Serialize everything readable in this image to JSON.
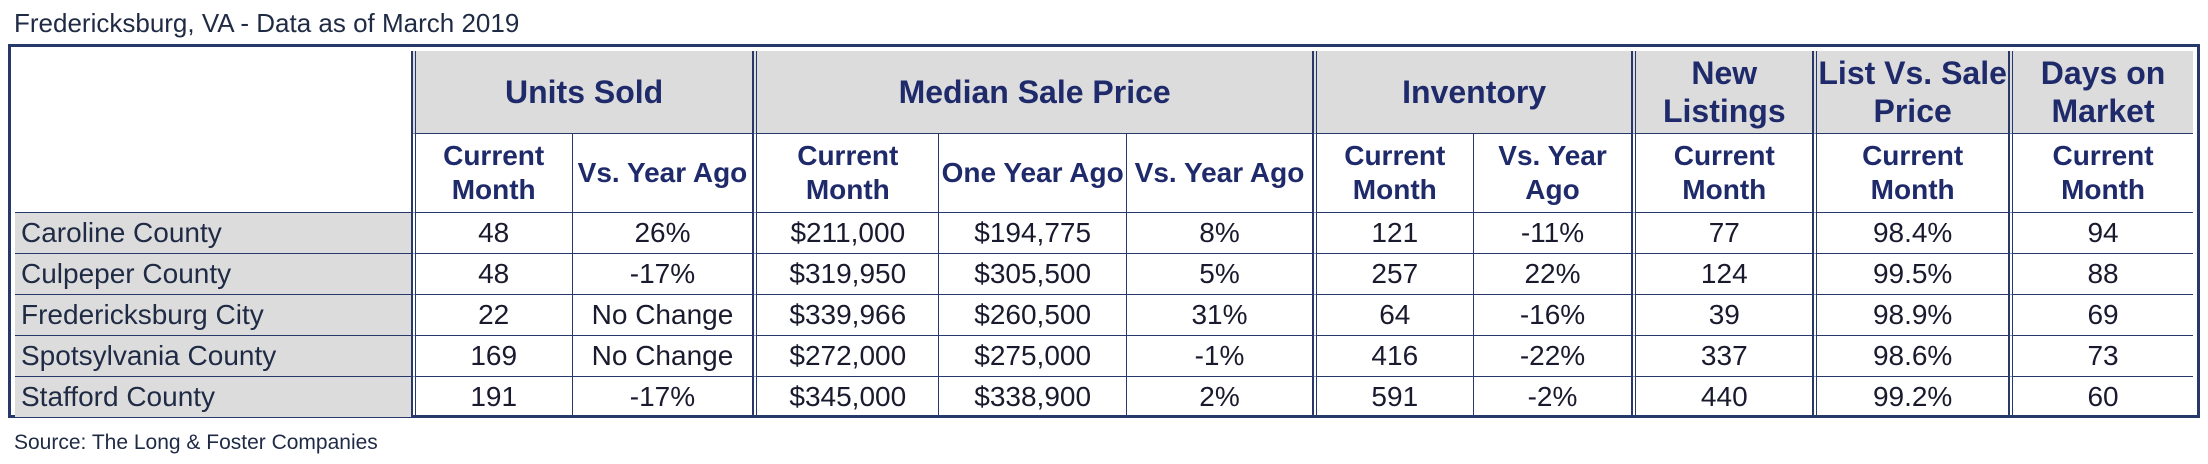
{
  "title": "Fredericksburg, VA - Data as of March 2019",
  "source": "Source: The Long & Foster Companies",
  "groups": {
    "units_sold": "Units Sold",
    "median_sale_price": "Median Sale Price",
    "inventory": "Inventory",
    "new_listings": "New Listings",
    "list_vs_sale": "List Vs. Sale Price",
    "days_on_market": "Days on Market"
  },
  "subheaders": {
    "current_month": "Current Month",
    "vs_year_ago": "Vs. Year Ago",
    "one_year_ago": "One Year Ago"
  },
  "rows": [
    {
      "name": "Caroline County",
      "units": "48",
      "units_vs": "26%",
      "price": "$211,000",
      "price_prev": "$194,775",
      "price_vs": "8%",
      "inventory": "121",
      "inventory_vs": "-11%",
      "new_listings": "77",
      "list_vs_sale": "98.4%",
      "dom": "94"
    },
    {
      "name": "Culpeper County",
      "units": "48",
      "units_vs": "-17%",
      "price": "$319,950",
      "price_prev": "$305,500",
      "price_vs": "5%",
      "inventory": "257",
      "inventory_vs": "22%",
      "new_listings": "124",
      "list_vs_sale": "99.5%",
      "dom": "88"
    },
    {
      "name": "Fredericksburg City",
      "units": "22",
      "units_vs": "No Change",
      "price": "$339,966",
      "price_prev": "$260,500",
      "price_vs": "31%",
      "inventory": "64",
      "inventory_vs": "-16%",
      "new_listings": "39",
      "list_vs_sale": "98.9%",
      "dom": "69"
    },
    {
      "name": "Spotsylvania County",
      "units": "169",
      "units_vs": "No Change",
      "price": "$272,000",
      "price_prev": "$275,000",
      "price_vs": "-1%",
      "inventory": "416",
      "inventory_vs": "-22%",
      "new_listings": "337",
      "list_vs_sale": "98.6%",
      "dom": "73"
    },
    {
      "name": "Stafford County",
      "units": "191",
      "units_vs": "-17%",
      "price": "$345,000",
      "price_prev": "$338,900",
      "price_vs": "2%",
      "inventory": "591",
      "inventory_vs": "-2%",
      "new_listings": "440",
      "list_vs_sale": "99.2%",
      "dom": "60"
    }
  ]
}
